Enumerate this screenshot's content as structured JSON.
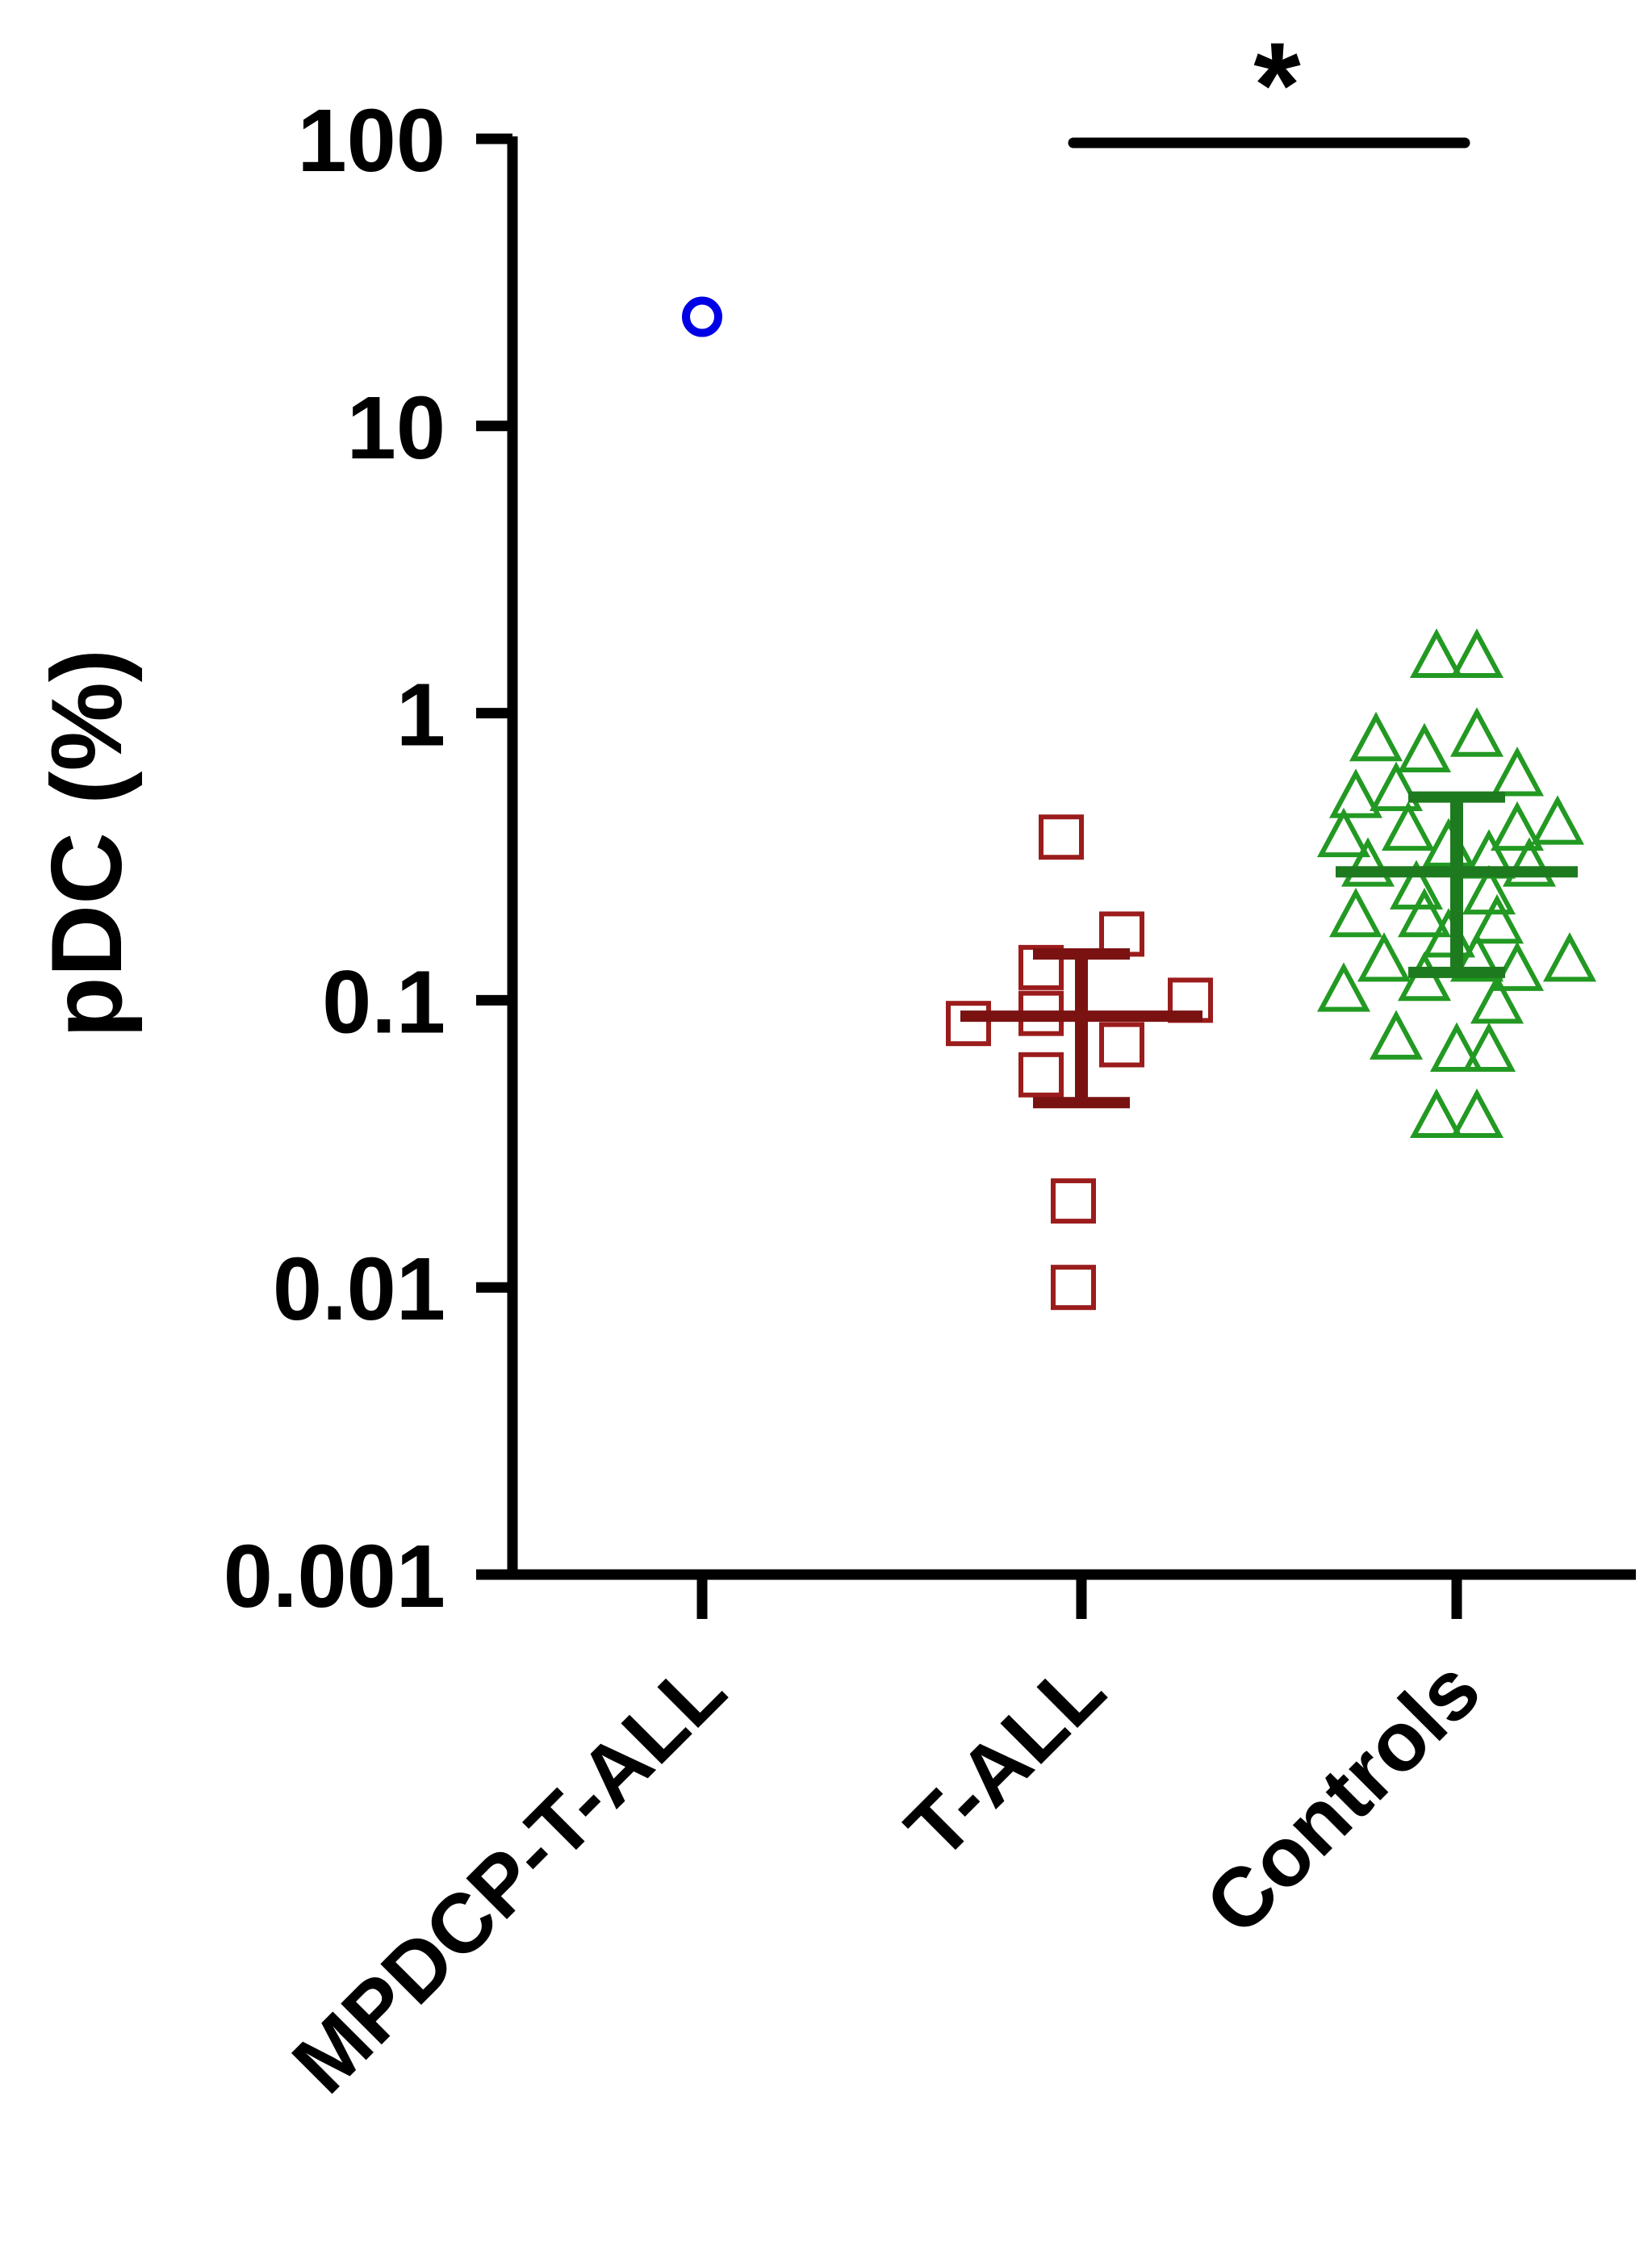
{
  "chart_data": {
    "type": "scatter",
    "title": "",
    "xlabel": "",
    "ylabel": "pDC (%)",
    "yscale": "log",
    "ylim": [
      0.001,
      100
    ],
    "ytick_labels": [
      "0.001",
      "0.01",
      "0.1",
      "1",
      "10",
      "100"
    ],
    "categories": [
      "MPDCP-T-ALL",
      "T-ALL",
      "Controls"
    ],
    "grid": false,
    "legend": "none",
    "series": [
      {
        "category": "MPDCP-T-ALL",
        "marker": "circle",
        "color": "#0000e6",
        "points": [
          {
            "x": 0,
            "y": 24
          }
        ]
      },
      {
        "category": "T-ALL",
        "marker": "square",
        "color": "#9b1c1c",
        "summary_color": "#7a1212",
        "points": [
          {
            "x": -0.05,
            "y": 0.37
          },
          {
            "x": 0.1,
            "y": 0.17
          },
          {
            "x": -0.1,
            "y": 0.13
          },
          {
            "x": 0.27,
            "y": 0.1
          },
          {
            "x": -0.28,
            "y": 0.083
          },
          {
            "x": -0.1,
            "y": 0.09
          },
          {
            "x": 0.1,
            "y": 0.07
          },
          {
            "x": -0.1,
            "y": 0.055
          },
          {
            "x": -0.02,
            "y": 0.02
          },
          {
            "x": -0.02,
            "y": 0.01
          }
        ],
        "median": 0.088,
        "iqr": [
          0.044,
          0.145
        ]
      },
      {
        "category": "Controls",
        "marker": "triangle",
        "color": "#229922",
        "summary_color": "#1e7a1e",
        "points": [
          {
            "x": -0.05,
            "y": 1.6
          },
          {
            "x": 0.05,
            "y": 1.6
          },
          {
            "x": -0.2,
            "y": 0.82
          },
          {
            "x": -0.08,
            "y": 0.75
          },
          {
            "x": 0.05,
            "y": 0.85
          },
          {
            "x": 0.15,
            "y": 0.62
          },
          {
            "x": -0.25,
            "y": 0.52
          },
          {
            "x": -0.15,
            "y": 0.55
          },
          {
            "x": 0.25,
            "y": 0.42
          },
          {
            "x": 0.15,
            "y": 0.4
          },
          {
            "x": -0.28,
            "y": 0.38
          },
          {
            "x": -0.12,
            "y": 0.4
          },
          {
            "x": -0.02,
            "y": 0.35
          },
          {
            "x": 0.08,
            "y": 0.32
          },
          {
            "x": 0.18,
            "y": 0.3
          },
          {
            "x": -0.22,
            "y": 0.3
          },
          {
            "x": -0.1,
            "y": 0.25
          },
          {
            "x": 0.08,
            "y": 0.24
          },
          {
            "x": -0.25,
            "y": 0.2
          },
          {
            "x": -0.08,
            "y": 0.2
          },
          {
            "x": 0.1,
            "y": 0.19
          },
          {
            "x": -0.02,
            "y": 0.17
          },
          {
            "x": -0.18,
            "y": 0.14
          },
          {
            "x": 0.05,
            "y": 0.14
          },
          {
            "x": 0.15,
            "y": 0.13
          },
          {
            "x": 0.28,
            "y": 0.14
          },
          {
            "x": -0.28,
            "y": 0.11
          },
          {
            "x": -0.08,
            "y": 0.12
          },
          {
            "x": 0.1,
            "y": 0.1
          },
          {
            "x": -0.15,
            "y": 0.075
          },
          {
            "x": 0.0,
            "y": 0.068
          },
          {
            "x": 0.08,
            "y": 0.068
          },
          {
            "x": -0.05,
            "y": 0.04
          },
          {
            "x": 0.05,
            "y": 0.04
          }
        ],
        "median": 0.28,
        "iqr": [
          0.125,
          0.51
        ]
      }
    ],
    "annotations": [
      {
        "type": "significance",
        "between": [
          "T-ALL",
          "Controls"
        ],
        "label": "*"
      }
    ]
  }
}
